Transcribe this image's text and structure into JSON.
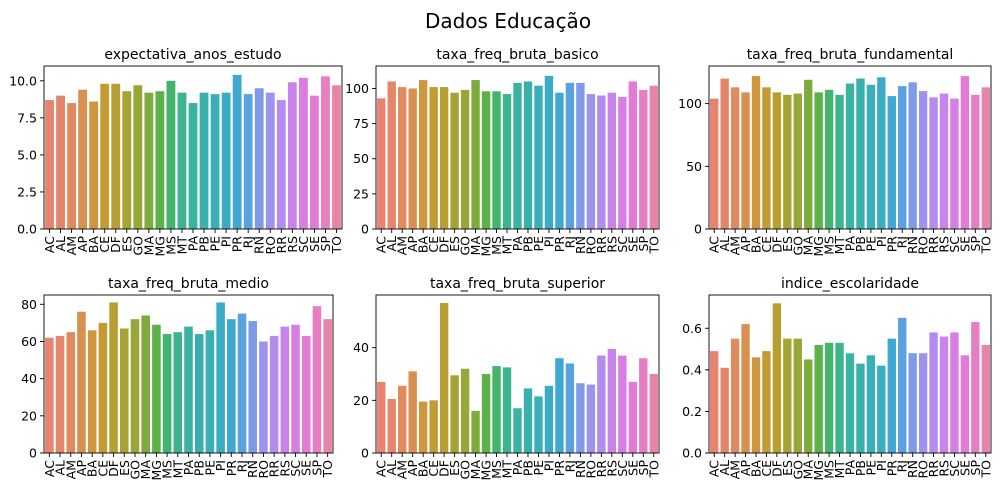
{
  "figure": {
    "title": "Dados Educação"
  },
  "chart_data": [
    {
      "type": "bar",
      "title": "expectativa_anos_estudo",
      "categories": [
        "AC",
        "AL",
        "AM",
        "AP",
        "BA",
        "CE",
        "DF",
        "ES",
        "GO",
        "MA",
        "MG",
        "MS",
        "MT",
        "PA",
        "PB",
        "PE",
        "PI",
        "PR",
        "RJ",
        "RN",
        "RO",
        "RR",
        "RS",
        "SC",
        "SE",
        "SP",
        "TO"
      ],
      "values": [
        8.7,
        9.0,
        8.5,
        9.4,
        8.6,
        9.8,
        9.8,
        9.3,
        9.7,
        9.2,
        9.3,
        10.0,
        9.2,
        8.5,
        9.2,
        9.1,
        9.2,
        10.4,
        9.1,
        9.5,
        9.2,
        8.7,
        9.9,
        10.2,
        9.0,
        10.3,
        9.7
      ],
      "ylim": [
        0,
        11.0
      ],
      "yticks": [
        0.0,
        2.5,
        5.0,
        7.5,
        10.0
      ],
      "ytick_labels": [
        "0.0",
        "2.5",
        "5.0",
        "7.5",
        "10.0"
      ],
      "xlabel": "",
      "ylabel": "",
      "legend": false
    },
    {
      "type": "bar",
      "title": "taxa_freq_bruta_basico",
      "categories": [
        "AC",
        "AL",
        "AM",
        "AP",
        "BA",
        "CE",
        "DF",
        "ES",
        "GO",
        "MA",
        "MG",
        "MS",
        "MT",
        "PA",
        "PB",
        "PE",
        "PI",
        "PR",
        "RJ",
        "RN",
        "RO",
        "RR",
        "RS",
        "SC",
        "SE",
        "SP",
        "TO"
      ],
      "values": [
        93,
        105,
        101,
        100,
        106,
        101,
        101,
        97,
        99,
        106,
        98,
        98,
        96,
        104,
        105,
        102,
        109,
        97,
        104,
        104,
        96,
        95,
        97,
        94,
        105,
        99,
        102
      ],
      "ylim": [
        0,
        116
      ],
      "yticks": [
        0,
        25,
        50,
        75,
        100
      ],
      "ytick_labels": [
        "0",
        "25",
        "50",
        "75",
        "100"
      ],
      "xlabel": "",
      "ylabel": "",
      "legend": false
    },
    {
      "type": "bar",
      "title": "taxa_freq_bruta_fundamental",
      "categories": [
        "AC",
        "AL",
        "AM",
        "AP",
        "BA",
        "CE",
        "DF",
        "ES",
        "GO",
        "MA",
        "MG",
        "MS",
        "MT",
        "PA",
        "PB",
        "PE",
        "PI",
        "PR",
        "RJ",
        "RN",
        "RO",
        "RR",
        "RS",
        "SC",
        "SE",
        "SP",
        "TO"
      ],
      "values": [
        104,
        120,
        113,
        109,
        122,
        113,
        109,
        107,
        108,
        119,
        109,
        111,
        107,
        116,
        120,
        115,
        121,
        106,
        114,
        117,
        110,
        105,
        108,
        104,
        122,
        107,
        113
      ],
      "ylim": [
        0,
        130
      ],
      "yticks": [
        0,
        50,
        100
      ],
      "ytick_labels": [
        "0",
        "50",
        "100"
      ],
      "xlabel": "",
      "ylabel": "",
      "legend": false
    },
    {
      "type": "bar",
      "title": "taxa_freq_bruta_medio",
      "categories": [
        "AC",
        "AL",
        "AM",
        "AP",
        "BA",
        "CE",
        "DF",
        "ES",
        "GO",
        "MA",
        "MG",
        "MS",
        "MT",
        "PA",
        "PB",
        "PE",
        "PI",
        "PR",
        "RJ",
        "RN",
        "RO",
        "RR",
        "RS",
        "SC",
        "SE",
        "SP",
        "TO"
      ],
      "values": [
        62,
        63,
        65,
        76,
        66,
        70,
        81,
        67,
        72,
        74,
        69,
        64,
        65,
        68,
        64,
        66,
        81,
        72,
        75,
        71,
        60,
        63,
        68,
        69,
        63,
        79,
        72
      ],
      "ylim": [
        0,
        85
      ],
      "yticks": [
        0,
        20,
        40,
        60,
        80
      ],
      "ytick_labels": [
        "0",
        "20",
        "40",
        "60",
        "80"
      ],
      "xlabel": "",
      "ylabel": "",
      "legend": false
    },
    {
      "type": "bar",
      "title": "taxa_freq_bruta_superior",
      "categories": [
        "AC",
        "AL",
        "AM",
        "AP",
        "BA",
        "CE",
        "DF",
        "ES",
        "GO",
        "MA",
        "MG",
        "MS",
        "MT",
        "PA",
        "PB",
        "PE",
        "PI",
        "PR",
        "RJ",
        "RN",
        "RO",
        "RR",
        "RS",
        "SC",
        "SE",
        "SP",
        "TO"
      ],
      "values": [
        27,
        20.5,
        25.5,
        31,
        19.5,
        20,
        57,
        29.5,
        32,
        16,
        30,
        33,
        32.5,
        17,
        24.5,
        21.5,
        25.5,
        36,
        34,
        26.5,
        26,
        37,
        39.5,
        37,
        27,
        36,
        30
      ],
      "ylim": [
        0,
        60
      ],
      "yticks": [
        0,
        20,
        40
      ],
      "ytick_labels": [
        "0",
        "20",
        "40"
      ],
      "xlabel": "",
      "ylabel": "",
      "legend": false
    },
    {
      "type": "bar",
      "title": "indice_escolaridade",
      "categories": [
        "AC",
        "AL",
        "AM",
        "AP",
        "BA",
        "CE",
        "DF",
        "ES",
        "GO",
        "MA",
        "MG",
        "MS",
        "MT",
        "PA",
        "PB",
        "PE",
        "PI",
        "PR",
        "RJ",
        "RN",
        "RO",
        "RR",
        "RS",
        "SC",
        "SE",
        "SP",
        "TO"
      ],
      "values": [
        0.49,
        0.41,
        0.55,
        0.62,
        0.46,
        0.49,
        0.72,
        0.55,
        0.55,
        0.45,
        0.52,
        0.53,
        0.53,
        0.48,
        0.43,
        0.47,
        0.42,
        0.55,
        0.65,
        0.48,
        0.48,
        0.58,
        0.56,
        0.58,
        0.47,
        0.63,
        0.52
      ],
      "ylim": [
        0,
        0.76
      ],
      "yticks": [
        0.0,
        0.2,
        0.4,
        0.6
      ],
      "ytick_labels": [
        "0.0",
        "0.2",
        "0.4",
        "0.6"
      ],
      "xlabel": "",
      "ylabel": "",
      "legend": false
    }
  ],
  "colors": {
    "palette": [
      "#e8836f",
      "#e5856a",
      "#e08a5e",
      "#d98f4f",
      "#cf963e",
      "#c49b33",
      "#b79f31",
      "#a7a333",
      "#97a738",
      "#7eac3c",
      "#5cb147",
      "#43b46d",
      "#3db48d",
      "#3ab3a0",
      "#38b1ac",
      "#39afb8",
      "#3bacc5",
      "#3ea8d3",
      "#5aa1e0",
      "#7f9be8",
      "#9d93ec",
      "#b48bee",
      "#c883ec",
      "#d87de4",
      "#e37ad6",
      "#e77ec3",
      "#e883ab"
    ]
  }
}
